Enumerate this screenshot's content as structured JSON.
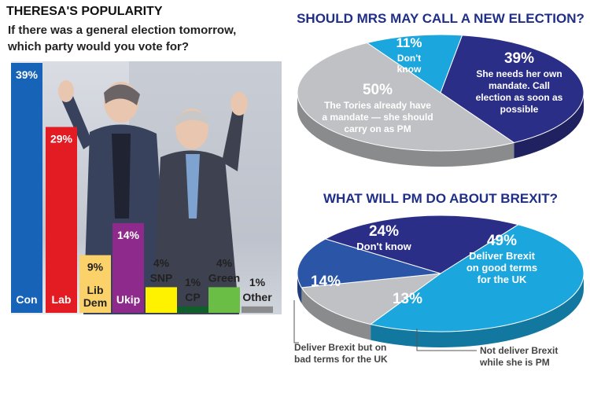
{
  "colors": {
    "con": "#1763b8",
    "lab": "#e31b23",
    "libdem": "#fbd16a",
    "ukip": "#8e2a8b",
    "snp": "#fff200",
    "cp": "#0f5e2c",
    "green": "#6abd45",
    "other": "#8b8c8e",
    "navy": "#2b2e86",
    "cyan": "#1ba6de",
    "mid_blue": "#2b56a8",
    "grey": "#bfc1c4"
  },
  "chart_data": [
    {
      "type": "bar",
      "title": "THERESA'S POPULARITY",
      "subtitle": "If there was a general election tomorrow, which party would you vote for?",
      "categories": [
        "Con",
        "Lab",
        "Lib Dem",
        "Ukip",
        "SNP",
        "CP",
        "Green",
        "Other"
      ],
      "values": [
        39,
        29,
        9,
        14,
        4,
        1,
        4,
        1
      ],
      "value_labels": [
        "39%",
        "29%",
        "9%",
        "14%",
        "4%",
        "1%",
        "4%",
        "1%"
      ],
      "ylim": [
        0,
        40
      ],
      "grid": false
    },
    {
      "type": "pie",
      "title": "SHOULD MRS MAY CALL A NEW ELECTION?",
      "slices": [
        {
          "value": 11,
          "label": "11%",
          "text": "Don't know"
        },
        {
          "value": 39,
          "label": "39%",
          "text": "She needs her own mandate. Call election as soon as possible"
        },
        {
          "value": 50,
          "label": "50%",
          "text": "The Tories already have a mandate — she should carry on as PM"
        }
      ]
    },
    {
      "type": "pie",
      "title": "WHAT WILL PM DO ABOUT BREXIT?",
      "slices": [
        {
          "value": 24,
          "label": "24%",
          "text": "Don't know"
        },
        {
          "value": 49,
          "label": "49%",
          "text": "Deliver Brexit on good terms for the UK"
        },
        {
          "value": 13,
          "label": "13%",
          "text": "Not deliver Brexit while she is PM"
        },
        {
          "value": 14,
          "label": "14%",
          "text": "Deliver Brexit but on bad terms for the UK"
        }
      ]
    }
  ]
}
